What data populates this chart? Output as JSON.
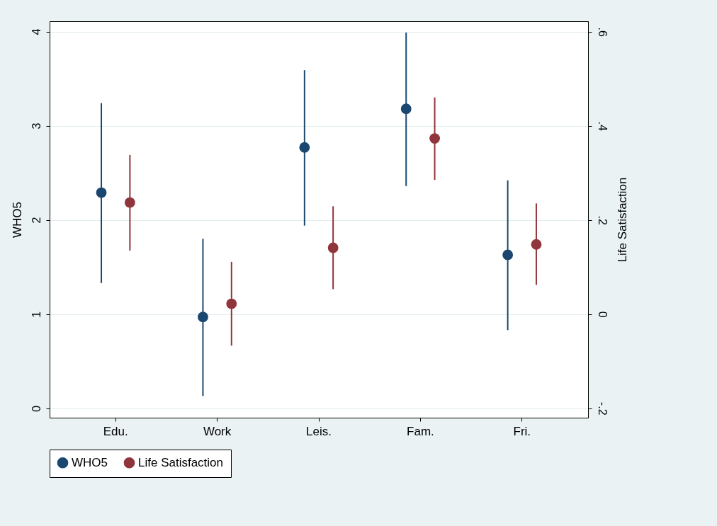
{
  "chart_data": {
    "type": "scatter",
    "categories": [
      "Edu.",
      "Work",
      "Leis.",
      "Fam.",
      "Fri."
    ],
    "series": [
      {
        "name": "WHO5",
        "color": "#1a476f",
        "values": [
          2.29,
          0.97,
          2.77,
          3.18,
          1.63
        ],
        "errors": [
          [
            1.33,
            3.24
          ],
          [
            0.13,
            1.8
          ],
          [
            1.94,
            3.59
          ],
          [
            2.36,
            3.99
          ],
          [
            0.83,
            2.42
          ]
        ]
      },
      {
        "name": "Life Satisfaction",
        "color": "#90353b",
        "axis": "y2",
        "values": [
          0.237,
          0.022,
          0.141,
          0.373,
          0.148
        ],
        "errors": [
          [
            0.135,
            0.338
          ],
          [
            -0.067,
            0.111
          ],
          [
            0.053,
            0.229
          ],
          [
            0.285,
            0.46
          ],
          [
            0.062,
            0.235
          ]
        ]
      }
    ],
    "ylabel": "WHO5",
    "y2label": "Life Satisfaction",
    "ylim": [
      -0.1,
      4.11
    ],
    "yticks": [
      0,
      1,
      2,
      3,
      4
    ],
    "y2lim": [
      -0.22,
      0.622
    ],
    "y2ticks": [
      {
        "value": -0.2,
        "label": "-.2"
      },
      0,
      {
        "value": 0.2,
        "label": ".2"
      },
      {
        "value": 0.4,
        "label": ".4"
      },
      {
        "value": 0.6,
        "label": ".6"
      }
    ],
    "grid": "y",
    "legend": "bottom",
    "marker": "circle"
  }
}
